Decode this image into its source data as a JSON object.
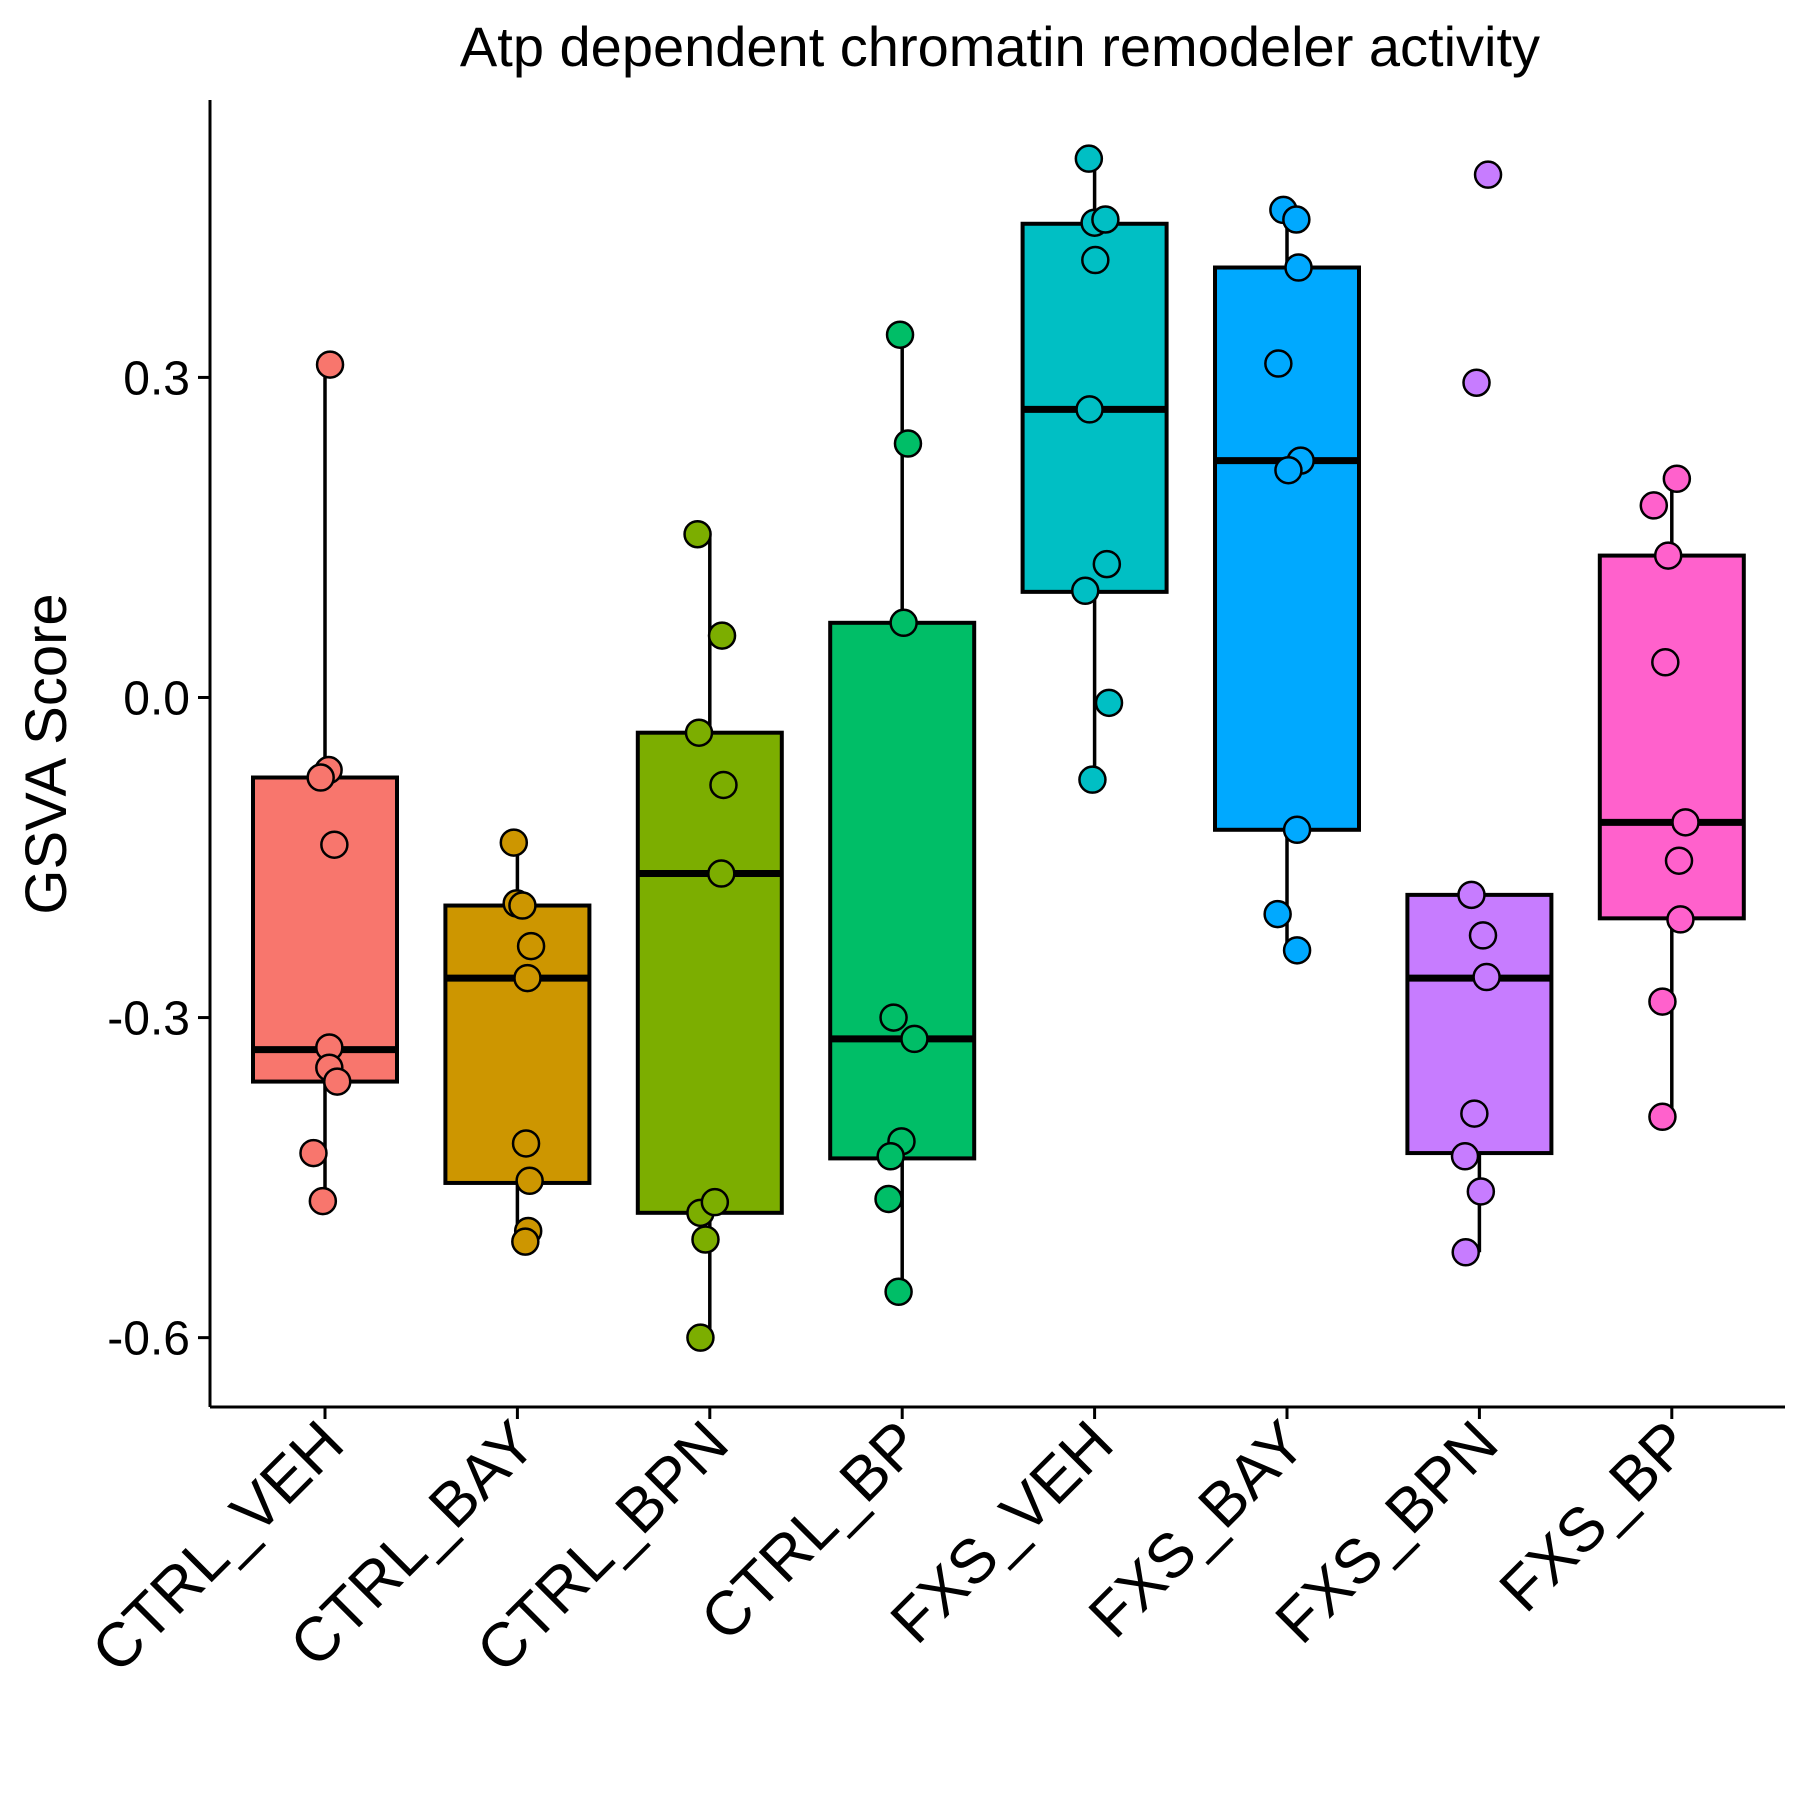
{
  "chart_data": {
    "type": "boxplot",
    "title": "Atp dependent chromatin remodeler activity",
    "xlabel": "",
    "ylabel": "GSVA Score",
    "ylim": [
      -0.665,
      0.56
    ],
    "yticks": [
      -0.6,
      -0.3,
      0.0,
      0.3
    ],
    "ytick_labels": [
      "-0.6",
      "-0.3",
      "0.0",
      "0.3"
    ],
    "grid": false,
    "legend": "none",
    "categories": [
      "CTRL_VEH",
      "CTRL_BAY",
      "CTRL_BPN",
      "CTRL_BP",
      "FXS_VEH",
      "FXS_BAY",
      "FXS_BPN",
      "FXS_BP"
    ],
    "colors": [
      "#F8766D",
      "#CD9600",
      "#7CAE00",
      "#00BE67",
      "#00BFC4",
      "#00A9FF",
      "#C77CFF",
      "#FF61CC"
    ],
    "boxes": [
      {
        "whisker_low": -0.47,
        "q1": -0.36,
        "median": -0.33,
        "q3": -0.075,
        "whisker_high": 0.31
      },
      {
        "whisker_low": -0.51,
        "q1": -0.455,
        "median": -0.263,
        "q3": -0.195,
        "whisker_high": -0.135
      },
      {
        "whisker_low": -0.6,
        "q1": -0.483,
        "median": -0.165,
        "q3": -0.033,
        "whisker_high": 0.152
      },
      {
        "whisker_low": -0.557,
        "q1": -0.432,
        "median": -0.32,
        "q3": 0.07,
        "whisker_high": 0.34
      },
      {
        "whisker_low": -0.077,
        "q1": 0.099,
        "median": 0.27,
        "q3": 0.444,
        "whisker_high": 0.505
      },
      {
        "whisker_low": -0.237,
        "q1": -0.124,
        "median": 0.222,
        "q3": 0.403,
        "whisker_high": 0.457
      },
      {
        "whisker_low": -0.52,
        "q1": -0.427,
        "median": -0.263,
        "q3": -0.185,
        "whisker_high": -0.185
      },
      {
        "whisker_low": -0.395,
        "q1": -0.207,
        "median": -0.117,
        "q3": 0.133,
        "whisker_high": 0.205
      }
    ],
    "points": [
      {
        "group": "CTRL_VEH",
        "values": [
          0.312,
          -0.068,
          -0.075,
          -0.138,
          -0.328,
          -0.347,
          -0.36,
          -0.427,
          -0.472
        ],
        "jitter": [
          0.07,
          0.05,
          -0.06,
          0.13,
          0.06,
          0.06,
          0.17,
          -0.16,
          -0.03
        ]
      },
      {
        "group": "CTRL_BAY",
        "values": [
          -0.136,
          -0.193,
          -0.195,
          -0.233,
          -0.263,
          -0.418,
          -0.453,
          -0.5,
          -0.51
        ],
        "jitter": [
          -0.05,
          -0.01,
          0.07,
          0.19,
          0.14,
          0.12,
          0.17,
          0.15,
          0.11
        ]
      },
      {
        "group": "CTRL_BPN",
        "values": [
          0.153,
          0.058,
          -0.033,
          -0.082,
          -0.165,
          -0.483,
          -0.473,
          -0.508,
          -0.6
        ],
        "jitter": [
          -0.17,
          0.17,
          -0.15,
          0.19,
          0.16,
          -0.13,
          0.07,
          -0.06,
          -0.13
        ]
      },
      {
        "group": "CTRL_BP",
        "values": [
          0.34,
          0.238,
          0.07,
          -0.3,
          -0.32,
          -0.416,
          -0.43,
          -0.47,
          -0.557
        ],
        "jitter": [
          -0.03,
          0.08,
          0.02,
          -0.12,
          0.17,
          -0.01,
          -0.16,
          -0.19,
          -0.05
        ]
      },
      {
        "group": "FXS_VEH",
        "values": [
          0.505,
          0.445,
          0.448,
          0.41,
          0.27,
          0.125,
          0.1,
          -0.005,
          -0.077
        ],
        "jitter": [
          -0.08,
          0.0,
          0.15,
          0.01,
          -0.07,
          0.17,
          -0.13,
          0.2,
          -0.03
        ]
      },
      {
        "group": "FXS_BAY",
        "values": [
          0.457,
          0.448,
          0.403,
          0.313,
          0.222,
          0.213,
          -0.124,
          -0.203,
          -0.237
        ],
        "jitter": [
          -0.05,
          0.13,
          0.16,
          -0.12,
          0.19,
          0.02,
          0.14,
          -0.13,
          0.14
        ]
      },
      {
        "group": "FXS_BPN",
        "values": [
          0.49,
          0.295,
          -0.185,
          -0.223,
          -0.262,
          -0.39,
          -0.43,
          -0.463,
          -0.52
        ],
        "jitter": [
          0.12,
          -0.04,
          -0.11,
          0.05,
          0.1,
          -0.07,
          -0.2,
          0.02,
          -0.19
        ]
      },
      {
        "group": "FXS_BP",
        "values": [
          0.205,
          0.18,
          0.133,
          0.033,
          -0.117,
          -0.153,
          -0.208,
          -0.285,
          -0.393
        ],
        "jitter": [
          0.07,
          -0.25,
          -0.05,
          -0.09,
          0.19,
          0.1,
          0.12,
          -0.13,
          -0.13
        ]
      }
    ]
  }
}
